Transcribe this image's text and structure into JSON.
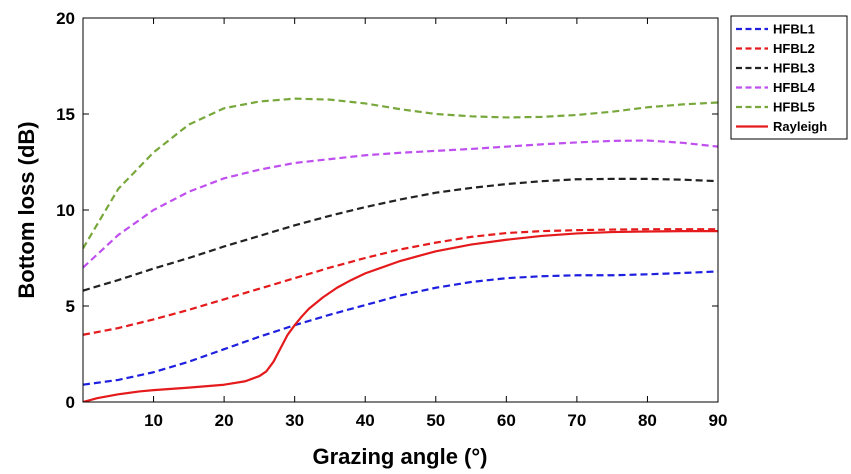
{
  "chart_data": {
    "type": "line",
    "title": "",
    "xlabel": "Grazing angle (°)",
    "ylabel": "Bottom loss (dB)",
    "xlim": [
      0,
      90
    ],
    "ylim": [
      0,
      20
    ],
    "xticks": [
      10,
      20,
      30,
      40,
      50,
      60,
      70,
      80,
      90
    ],
    "yticks": [
      0,
      5,
      10,
      15,
      20
    ],
    "grid": false,
    "legend": "outside-right",
    "series": [
      {
        "name": "HFBL1",
        "color": "#1f1fe0",
        "style": "dashed",
        "x": [
          0,
          5,
          10,
          15,
          20,
          25,
          30,
          35,
          40,
          45,
          50,
          55,
          60,
          65,
          70,
          75,
          80,
          85,
          90
        ],
        "y": [
          0.9,
          1.15,
          1.55,
          2.1,
          2.75,
          3.4,
          4.0,
          4.55,
          5.05,
          5.55,
          5.95,
          6.25,
          6.45,
          6.55,
          6.6,
          6.6,
          6.65,
          6.72,
          6.8
        ]
      },
      {
        "name": "HFBL2",
        "color": "#e41a1c",
        "style": "dashed",
        "x": [
          0,
          5,
          10,
          15,
          20,
          25,
          30,
          35,
          40,
          45,
          50,
          55,
          60,
          65,
          70,
          75,
          80,
          85,
          90
        ],
        "y": [
          3.5,
          3.85,
          4.3,
          4.8,
          5.35,
          5.9,
          6.45,
          7.0,
          7.5,
          7.95,
          8.3,
          8.6,
          8.8,
          8.9,
          8.95,
          8.98,
          9.0,
          9.0,
          9.0
        ]
      },
      {
        "name": "HFBL3",
        "color": "#222222",
        "style": "dashed",
        "x": [
          0,
          5,
          10,
          15,
          20,
          25,
          30,
          35,
          40,
          45,
          50,
          55,
          60,
          65,
          70,
          75,
          80,
          85,
          90
        ],
        "y": [
          5.8,
          6.35,
          6.95,
          7.5,
          8.1,
          8.65,
          9.2,
          9.7,
          10.15,
          10.55,
          10.9,
          11.15,
          11.35,
          11.5,
          11.6,
          11.62,
          11.62,
          11.58,
          11.5
        ]
      },
      {
        "name": "HFBL4",
        "color": "#bf4fef",
        "style": "dashed",
        "x": [
          0,
          5,
          10,
          15,
          20,
          25,
          30,
          35,
          40,
          45,
          50,
          55,
          60,
          65,
          70,
          75,
          80,
          85,
          90
        ],
        "y": [
          7.0,
          8.7,
          10.0,
          10.95,
          11.65,
          12.1,
          12.45,
          12.65,
          12.85,
          12.98,
          13.08,
          13.18,
          13.3,
          13.42,
          13.52,
          13.6,
          13.62,
          13.5,
          13.3
        ]
      },
      {
        "name": "HFBL5",
        "color": "#78a83c",
        "style": "dashed",
        "x": [
          0,
          5,
          10,
          15,
          20,
          25,
          30,
          35,
          40,
          45,
          50,
          55,
          60,
          65,
          70,
          75,
          80,
          85,
          90
        ],
        "y": [
          8.0,
          11.1,
          13.0,
          14.45,
          15.3,
          15.65,
          15.8,
          15.75,
          15.55,
          15.25,
          15.0,
          14.88,
          14.82,
          14.85,
          14.95,
          15.12,
          15.35,
          15.5,
          15.6
        ]
      },
      {
        "name": "Rayleigh",
        "color": "#e41a1c",
        "style": "solid",
        "x": [
          0,
          2,
          5,
          8,
          10,
          15,
          20,
          23,
          25,
          26,
          27,
          28,
          29,
          30,
          31,
          32,
          34,
          36,
          38,
          40,
          45,
          50,
          55,
          60,
          65,
          70,
          75,
          80,
          85,
          90
        ],
        "y": [
          0.0,
          0.2,
          0.4,
          0.55,
          0.62,
          0.75,
          0.9,
          1.08,
          1.35,
          1.6,
          2.1,
          2.8,
          3.5,
          4.0,
          4.45,
          4.85,
          5.45,
          5.95,
          6.35,
          6.7,
          7.35,
          7.85,
          8.2,
          8.45,
          8.65,
          8.78,
          8.85,
          8.88,
          8.9,
          8.9
        ]
      }
    ]
  }
}
